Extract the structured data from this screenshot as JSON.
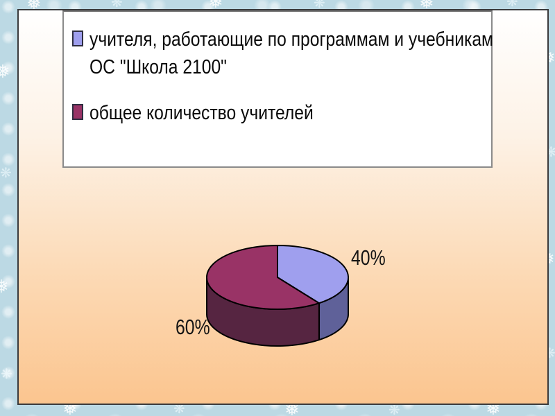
{
  "frame": {
    "background_color": "#bcd9e4",
    "pattern_description": "light blue border with white snowflake damask pattern",
    "snowflake_glyph": "❅",
    "flower_glyph": "❋"
  },
  "slide": {
    "background_top_color": "#ffffff",
    "background_bottom_color": "#fbc58f"
  },
  "legend": {
    "items": [
      {
        "line1": "учителя, работающие по программам и учебникам",
        "line2": "ОС \"Школа 2100\"",
        "color": "#9f9fee"
      },
      {
        "line1": "общее количество учителей",
        "line2": "",
        "color": "#993366"
      }
    ]
  },
  "chart_data": {
    "type": "pie",
    "style": "3d",
    "title": "",
    "labels": [
      "учителя, работающие по программам и учебникам ОС \"Школа 2100\"",
      "общее количество учителей"
    ],
    "values": [
      40,
      60
    ],
    "value_labels": [
      "40%",
      "60%"
    ],
    "colors": [
      "#9f9fee",
      "#993366"
    ],
    "side_colors": [
      "#5f6199",
      "#562541"
    ],
    "outline_color": "#000000",
    "start_angle_deg": 90,
    "direction": "clockwise",
    "legend_position": "top"
  }
}
